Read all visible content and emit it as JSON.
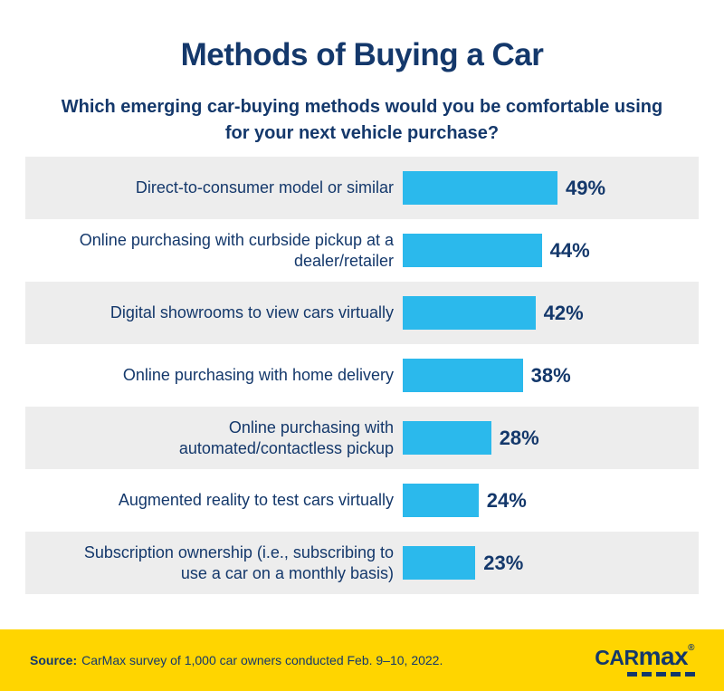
{
  "header": {
    "title": "Methods of Buying a Car",
    "subtitle": "Which emerging car-buying methods would you be comfortable using\nfor your next vehicle purchase?"
  },
  "chart_data": {
    "type": "bar",
    "orientation": "horizontal",
    "title": "Methods of Buying a Car",
    "subtitle": "Which emerging car-buying methods would you be comfortable using for your next vehicle purchase?",
    "categories": [
      "Direct-to-consumer model or similar",
      "Online purchasing with curbside pickup at a dealer/retailer",
      "Digital showrooms to view cars virtually",
      "Online purchasing with home delivery",
      "Online purchasing with automated/contactless pickup",
      "Augmented reality to test cars virtually",
      "Subscription ownership (i.e., subscribing to use a car on a monthly basis)"
    ],
    "display_labels": [
      "Direct-to-consumer model or similar",
      "Online purchasing with curbside pickup at a\ndealer/retailer",
      "Digital showrooms to view cars virtually",
      "Online purchasing with home delivery",
      "Online purchasing with\nautomated/contactless pickup",
      "Augmented reality to test cars virtually",
      "Subscription ownership (i.e., subscribing to\nuse a car on a monthly basis)"
    ],
    "values": [
      49,
      44,
      42,
      38,
      28,
      24,
      23
    ],
    "value_labels": [
      "49%",
      "44%",
      "42%",
      "38%",
      "28%",
      "24%",
      "23%"
    ],
    "unit": "%",
    "xlim": [
      0,
      50
    ],
    "legend": false,
    "grid": false,
    "row_striping": "alternating gray/white starting gray"
  },
  "footer": {
    "source_label": "Source:",
    "source_text": "CarMax survey of 1,000 car owners conducted Feb. 9–10, 2022.",
    "logo_text_1": "car",
    "logo_text_2": "max",
    "logo_reg": "®"
  },
  "colors": {
    "navy": "#14386b",
    "bar_cyan": "#2bb9ec",
    "row_gray": "#ededed",
    "footer_yellow": "#ffd500",
    "background": "#ffffff"
  }
}
